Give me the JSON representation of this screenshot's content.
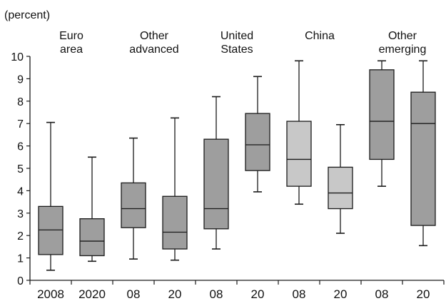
{
  "chart_data": {
    "type": "boxplot",
    "unit_label": "(percent)",
    "ylim": [
      0,
      10
    ],
    "y_ticks": [
      "0",
      "1",
      "2",
      "3",
      "4",
      "5",
      "6",
      "7",
      "8",
      "9",
      "10"
    ],
    "grid": false,
    "groups": [
      {
        "label": "Euro\narea",
        "start": 0,
        "span": 2
      },
      {
        "label": "Other\nadvanced",
        "start": 2,
        "span": 2
      },
      {
        "label": "United\nStates",
        "start": 4,
        "span": 2
      },
      {
        "label": "China",
        "start": 6,
        "span": 2
      },
      {
        "label": "Other\nemerging",
        "start": 8,
        "span": 2
      }
    ],
    "categories": [
      "2008",
      "2020",
      "08",
      "20",
      "08",
      "20",
      "08",
      "20",
      "08",
      "20"
    ],
    "colors": {
      "dark": "#9e9e9e",
      "light": "#c8c8c8",
      "stroke": "#1a1a1a"
    },
    "boxes": [
      {
        "min": 0.45,
        "q1": 1.15,
        "median": 2.25,
        "q3": 3.3,
        "max": 7.05,
        "shade": "dark"
      },
      {
        "min": 0.85,
        "q1": 1.1,
        "median": 1.75,
        "q3": 2.75,
        "max": 5.5,
        "shade": "dark"
      },
      {
        "min": 0.95,
        "q1": 2.35,
        "median": 3.2,
        "q3": 4.35,
        "max": 6.35,
        "shade": "dark"
      },
      {
        "min": 0.9,
        "q1": 1.4,
        "median": 2.15,
        "q3": 3.75,
        "max": 7.25,
        "shade": "dark"
      },
      {
        "min": 1.4,
        "q1": 2.3,
        "median": 3.2,
        "q3": 6.3,
        "max": 8.2,
        "shade": "dark"
      },
      {
        "min": 3.95,
        "q1": 4.9,
        "median": 6.05,
        "q3": 7.45,
        "max": 9.1,
        "shade": "dark"
      },
      {
        "min": 3.4,
        "q1": 4.2,
        "median": 5.4,
        "q3": 7.1,
        "max": 9.8,
        "shade": "light"
      },
      {
        "min": 2.1,
        "q1": 3.2,
        "median": 3.9,
        "q3": 5.05,
        "max": 6.95,
        "shade": "light"
      },
      {
        "min": 4.2,
        "q1": 5.4,
        "median": 7.1,
        "q3": 9.4,
        "max": 9.8,
        "shade": "dark"
      },
      {
        "min": 1.55,
        "q1": 2.45,
        "median": 7.0,
        "q3": 8.4,
        "max": 9.8,
        "shade": "dark"
      }
    ]
  }
}
